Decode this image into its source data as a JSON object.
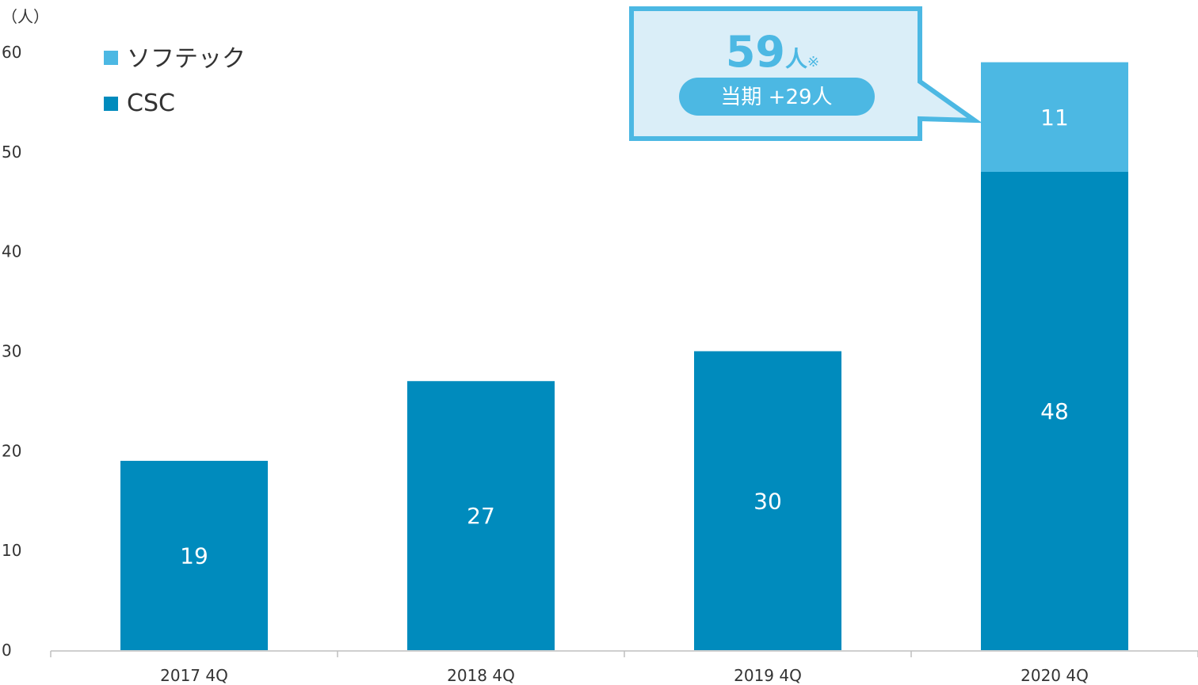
{
  "colors": {
    "csc": "#008bbd",
    "softec": "#4cb8e3",
    "callout_fill": "#daeef8",
    "callout_border": "#4cb8e3",
    "axis": "#bfbfbf",
    "text": "#333333"
  },
  "chart_data": {
    "type": "bar",
    "stacked": true,
    "unit_label": "（人）",
    "categories": [
      "2017 4Q",
      "2018 4Q",
      "2019 4Q",
      "2020 4Q"
    ],
    "series": [
      {
        "name": "CSC",
        "values": [
          19,
          27,
          30,
          48
        ]
      },
      {
        "name": "ソフテック",
        "values": [
          null,
          null,
          null,
          11
        ]
      }
    ],
    "ylim": [
      0,
      60
    ],
    "yticks": [
      0,
      10,
      20,
      30,
      40,
      50,
      60
    ],
    "legend": "top-left",
    "grid": false,
    "annotation": {
      "total": "59",
      "unit": "人",
      "note": "※",
      "change": "当期 +29人",
      "points_to": "2020 4Q"
    }
  }
}
